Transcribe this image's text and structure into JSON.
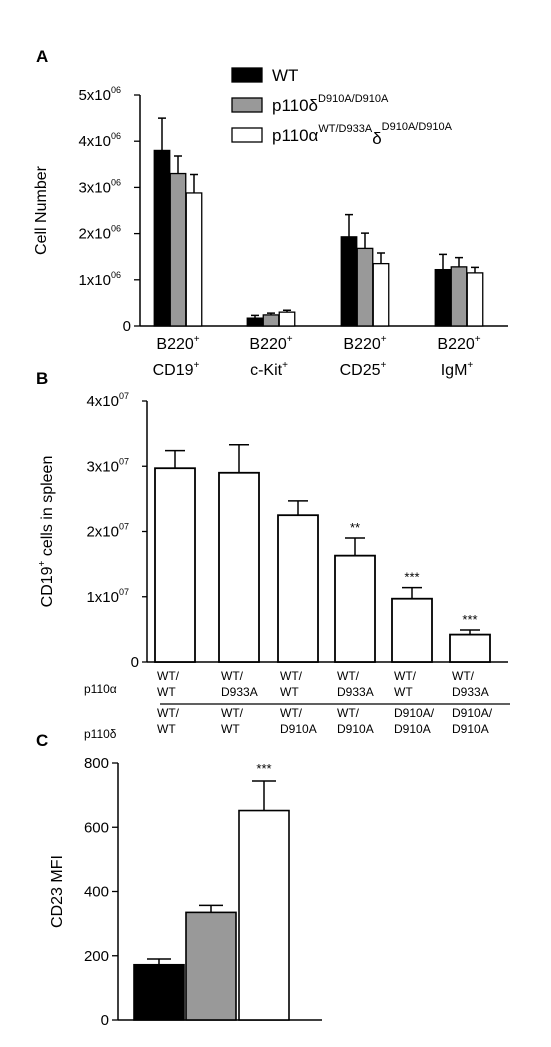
{
  "colors": {
    "wt": "#000000",
    "delta": "#999999",
    "alpha": "#ffffff",
    "axis": "#000000"
  },
  "chart_data": [
    {
      "panel": "A",
      "type": "bar",
      "ylabel": "Cell Number",
      "ylim": [
        0,
        5000000
      ],
      "yticks": [
        {
          "value": 0,
          "label": "0",
          "sup": ""
        },
        {
          "value": 1000000,
          "label": "1x10",
          "sup": "06"
        },
        {
          "value": 2000000,
          "label": "2x10",
          "sup": "06"
        },
        {
          "value": 3000000,
          "label": "3x10",
          "sup": "06"
        },
        {
          "value": 4000000,
          "label": "4x10",
          "sup": "06"
        },
        {
          "value": 5000000,
          "label": "5x10",
          "sup": "06"
        }
      ],
      "categories": [
        {
          "line1": "B220",
          "line1_sup": "+",
          "line2": "CD19",
          "line2_sup": "+"
        },
        {
          "line1": "B220",
          "line1_sup": "+",
          "line2": "c-Kit",
          "line2_sup": "+"
        },
        {
          "line1": "B220",
          "line1_sup": "+",
          "line2": "CD25",
          "line2_sup": "+"
        },
        {
          "line1": "B220",
          "line1_sup": "+",
          "line2": "IgM",
          "line2_sup": "+"
        }
      ],
      "series": [
        {
          "legend": "WT",
          "legend_sup": "",
          "legend_tail": "",
          "legend_tail_sup": "",
          "color": "#000000",
          "values": [
            3800000,
            170000,
            1930000,
            1220000
          ],
          "errors": [
            700000,
            60000,
            480000,
            330000
          ]
        },
        {
          "legend": "p110δ",
          "legend_sup": "D910A/D910A",
          "legend_tail": "",
          "legend_tail_sup": "",
          "color": "#999999",
          "values": [
            3300000,
            240000,
            1680000,
            1280000
          ],
          "errors": [
            380000,
            40000,
            330000,
            200000
          ]
        },
        {
          "legend": "p110α",
          "legend_sup": "WT/D933A",
          "legend_tail": "δ",
          "legend_tail_sup": "D910A/D910A",
          "color": "#ffffff",
          "values": [
            2880000,
            300000,
            1350000,
            1150000
          ],
          "errors": [
            400000,
            40000,
            230000,
            120000
          ]
        }
      ],
      "legend_position": "top-right"
    },
    {
      "panel": "B",
      "type": "bar",
      "ylabel": "CD19",
      "ylabel_sup": "+",
      "ylabel_tail": " cells in spleen",
      "ylim": [
        0,
        40000000
      ],
      "yticks": [
        {
          "value": 0,
          "label": "0",
          "sup": ""
        },
        {
          "value": 10000000,
          "label": "1x10",
          "sup": "07"
        },
        {
          "value": 20000000,
          "label": "2x10",
          "sup": "07"
        },
        {
          "value": 30000000,
          "label": "3x10",
          "sup": "07"
        },
        {
          "value": 40000000,
          "label": "4x10",
          "sup": "07"
        }
      ],
      "row_labels": [
        "p110α",
        "p110δ"
      ],
      "categories": [
        {
          "alpha": [
            "WT/",
            "WT"
          ],
          "delta": [
            "WT/",
            "WT"
          ]
        },
        {
          "alpha": [
            "WT/",
            "D933A"
          ],
          "delta": [
            "WT/",
            "WT"
          ]
        },
        {
          "alpha": [
            "WT/",
            "WT"
          ],
          "delta": [
            "WT/",
            "D910A"
          ]
        },
        {
          "alpha": [
            "WT/",
            "D933A"
          ],
          "delta": [
            "WT/",
            "D910A"
          ]
        },
        {
          "alpha": [
            "WT/",
            "WT"
          ],
          "delta": [
            "D910A/",
            "D910A"
          ]
        },
        {
          "alpha": [
            "WT/",
            "D933A"
          ],
          "delta": [
            "D910A/",
            "D910A"
          ]
        }
      ],
      "values": [
        29700000,
        29000000,
        22500000,
        16300000,
        9700000,
        4200000
      ],
      "errors": [
        2700000,
        4300000,
        2200000,
        2700000,
        1700000,
        700000
      ],
      "significance": [
        "",
        "",
        "",
        "**",
        "***",
        "***"
      ]
    },
    {
      "panel": "C",
      "type": "bar",
      "ylabel": "CD23 MFI",
      "ylim": [
        0,
        800
      ],
      "yticks": [
        {
          "value": 0,
          "label": "0",
          "sup": ""
        },
        {
          "value": 200,
          "label": "200",
          "sup": ""
        },
        {
          "value": 400,
          "label": "400",
          "sup": ""
        },
        {
          "value": 600,
          "label": "600",
          "sup": ""
        },
        {
          "value": 800,
          "label": "800",
          "sup": ""
        }
      ],
      "values": [
        172,
        335,
        652
      ],
      "errors": [
        18,
        22,
        92
      ],
      "colors": [
        "#000000",
        "#999999",
        "#ffffff"
      ],
      "significance": [
        "",
        "",
        "***"
      ]
    }
  ]
}
